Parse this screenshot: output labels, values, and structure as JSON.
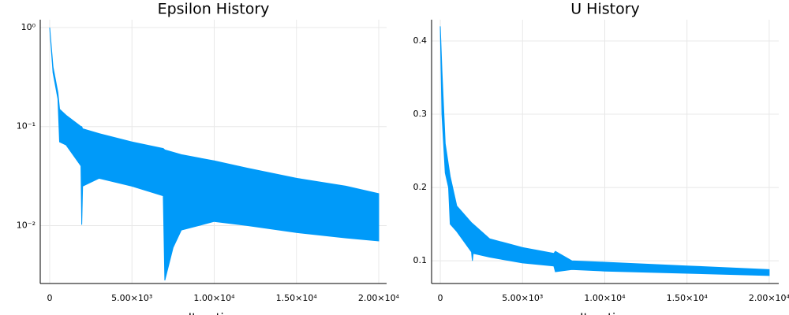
{
  "chart_data": [
    {
      "type": "band",
      "title": "Epsilon History",
      "xlabel": "Iteration",
      "color": "#009af9",
      "log_y": true,
      "grid": true,
      "x": [
        0,
        200,
        500,
        600,
        1000,
        1900,
        1950,
        2000,
        3000,
        5000,
        6900,
        7000,
        7500,
        8000,
        10000,
        12000,
        15000,
        18000,
        20000
      ],
      "y_upper": [
        1.0,
        0.4,
        0.22,
        0.15,
        0.13,
        0.1,
        0.1,
        0.095,
        0.085,
        0.07,
        0.06,
        0.058,
        0.055,
        0.052,
        0.045,
        0.038,
        0.03,
        0.025,
        0.021
      ],
      "y_lower": [
        1.0,
        0.35,
        0.19,
        0.07,
        0.065,
        0.04,
        0.0102,
        0.025,
        0.03,
        0.025,
        0.02,
        0.0028,
        0.006,
        0.009,
        0.011,
        0.01,
        0.0085,
        0.0075,
        0.007
      ],
      "xlim": [
        -575,
        20480
      ],
      "ylim": [
        0.0026,
        1.2
      ],
      "xticks": [
        0,
        {
          "value": 5000,
          "label": "5.00×10³"
        },
        {
          "value": 10000,
          "label": "1.00×10⁴"
        },
        {
          "value": 15000,
          "label": "1.50×10⁴"
        },
        {
          "value": 20000,
          "label": "2.00×10⁴"
        }
      ],
      "yticks": [
        {
          "value": 0.01,
          "label": "10⁻²"
        },
        {
          "value": 0.1,
          "label": "10⁻¹"
        },
        {
          "value": 1,
          "label": "10⁰"
        }
      ]
    },
    {
      "type": "band",
      "title": "U History",
      "xlabel": "Iteration",
      "color": "#009af9",
      "log_y": false,
      "grid": true,
      "x": [
        0,
        100,
        300,
        500,
        600,
        1000,
        1900,
        1950,
        2000,
        3000,
        5000,
        6900,
        7000,
        8000,
        10000,
        15000,
        20000
      ],
      "y_upper": [
        0.42,
        0.36,
        0.26,
        0.23,
        0.215,
        0.175,
        0.152,
        0.151,
        0.15,
        0.13,
        0.118,
        0.11,
        0.113,
        0.1,
        0.098,
        0.093,
        0.088
      ],
      "y_lower": [
        0.42,
        0.3,
        0.22,
        0.2,
        0.15,
        0.14,
        0.112,
        0.1,
        0.11,
        0.105,
        0.097,
        0.093,
        0.085,
        0.088,
        0.086,
        0.083,
        0.08
      ],
      "xlim": [
        -530,
        20580
      ],
      "ylim": [
        0.069,
        0.429
      ],
      "xticks": [
        0,
        {
          "value": 5000,
          "label": "5.00×10³"
        },
        {
          "value": 10000,
          "label": "1.00×10⁴"
        },
        {
          "value": 15000,
          "label": "1.50×10⁴"
        },
        {
          "value": 20000,
          "label": "2.00×10⁴"
        }
      ],
      "yticks": [
        0.1,
        0.2,
        0.3,
        0.4
      ]
    }
  ]
}
